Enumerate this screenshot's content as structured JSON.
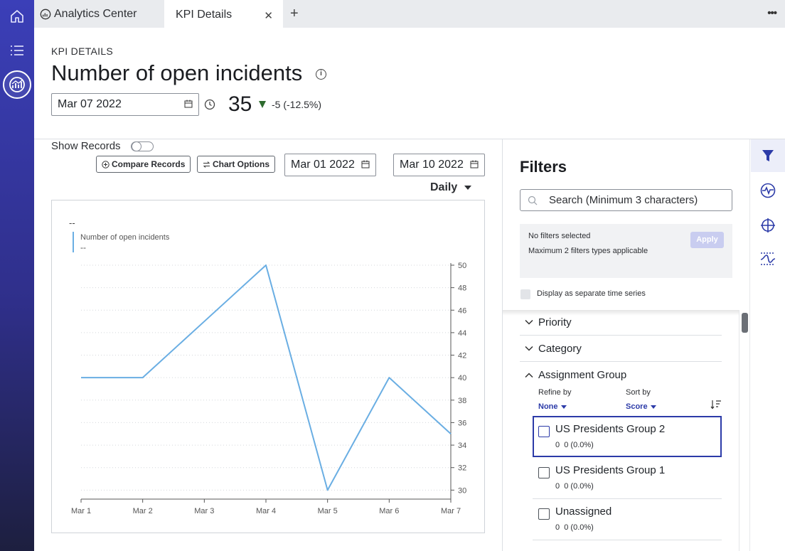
{
  "tabs": [
    {
      "label": "Analytics Center",
      "active": false
    },
    {
      "label": "KPI Details",
      "active": true
    }
  ],
  "header": {
    "eyebrow": "KPI DETAILS",
    "title": "Number of open incidents",
    "date": "Mar 07 2022",
    "value": "35",
    "delta": "-5 (-12.5%)"
  },
  "toolbar": {
    "show_records": "Show Records",
    "compare": "Compare Records",
    "chart_options": "Chart Options",
    "from_date": "Mar 01 2022",
    "to_date": "Mar 10 2022",
    "interval": "Daily"
  },
  "chart_data": {
    "type": "line",
    "title": "--",
    "legend_label": "Number of open incidents",
    "legend_value": "--",
    "x": [
      "Mar 1",
      "Mar 2",
      "Mar 3",
      "Mar 4",
      "Mar 5",
      "Mar 6",
      "Mar 7"
    ],
    "series": [
      {
        "name": "Number of open incidents",
        "values": [
          40,
          40,
          45,
          50,
          30,
          40,
          35
        ],
        "color": "#6aaee3"
      }
    ],
    "yticks": [
      30,
      32,
      34,
      36,
      38,
      40,
      42,
      44,
      46,
      48,
      50
    ],
    "ylim": [
      29.2,
      51.2
    ],
    "grid": true,
    "y_axis_side": "right"
  },
  "filters": {
    "title": "Filters",
    "search_placeholder": "Search (Minimum 3 characters)",
    "no_filters": "No filters selected",
    "max_note": "Maximum 2 filters types applicable",
    "apply": "Apply",
    "separate_series": "Display as separate time series",
    "sections": [
      "Priority",
      "Category",
      "Assignment Group"
    ],
    "refine_label": "Refine by",
    "refine_value": "None",
    "sort_label": "Sort by",
    "sort_value": "Score",
    "items": [
      {
        "name": "US Presidents Group 2",
        "count": "0",
        "meta": "0 (0.0%)"
      },
      {
        "name": "US Presidents Group 1",
        "count": "0",
        "meta": "0 (0.0%)"
      },
      {
        "name": "Unassigned",
        "count": "0",
        "meta": "0 (0.0%)"
      }
    ]
  },
  "colors": {
    "accent": "#2c3ba8",
    "rail": "#3b3fb8",
    "line": "#6aaee3",
    "trend_down": "#2e6b2f"
  }
}
